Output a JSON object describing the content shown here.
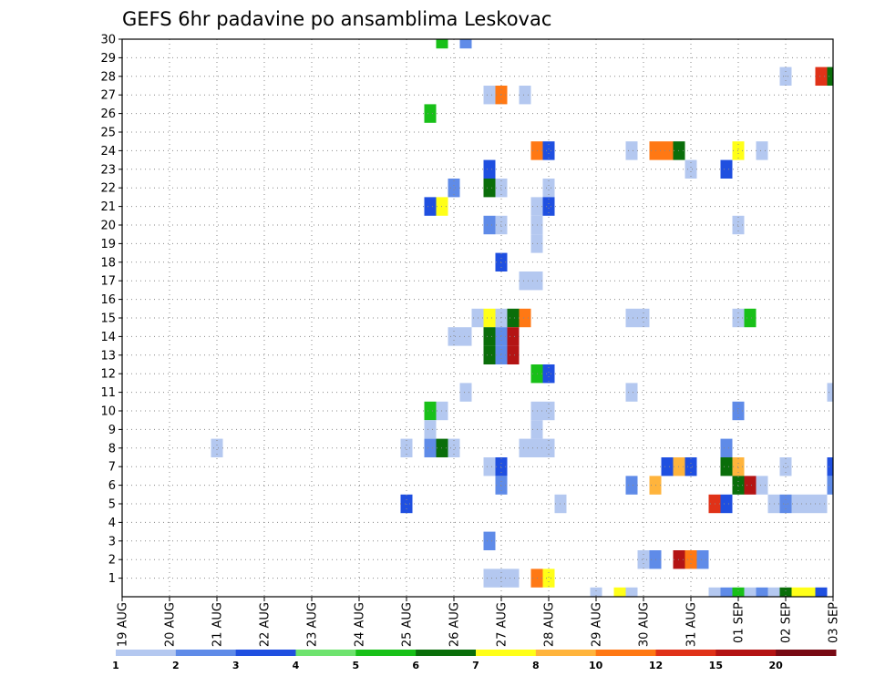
{
  "chart_data": {
    "type": "heatmap",
    "title": "GEFS 6hr padavine po ansamblima Leskovac",
    "xlabel": "",
    "ylabel": "",
    "x_start": "2019-08-19T00",
    "x_end": "2019-09-03T00",
    "x_step_hours": 6,
    "x_tick_labels": [
      "19 AUG",
      "20 AUG",
      "21 AUG",
      "22 AUG",
      "23 AUG",
      "24 AUG",
      "25 AUG",
      "26 AUG",
      "27 AUG",
      "28 AUG",
      "29 AUG",
      "30 AUG",
      "31 AUG",
      "01 SEP",
      "02 SEP",
      "03 SEP"
    ],
    "y_tick_labels": [
      "1",
      "2",
      "3",
      "4",
      "5",
      "6",
      "7",
      "8",
      "9",
      "10",
      "11",
      "12",
      "13",
      "14",
      "15",
      "16",
      "17",
      "18",
      "19",
      "20",
      "21",
      "22",
      "23",
      "24",
      "25",
      "26",
      "27",
      "28",
      "29",
      "30"
    ],
    "grid": true,
    "legend": {
      "placement": "bottom",
      "thresholds": [
        "1",
        "2",
        "3",
        "4",
        "5",
        "6",
        "7",
        "8",
        "10",
        "12",
        "15",
        "20"
      ],
      "colors": [
        "#b4c8f0",
        "#5f8be8",
        "#1f4fe0",
        "#6ee36e",
        "#18c018",
        "#0a6e0a",
        "#ffff18",
        "#ffb43c",
        "#ff7814",
        "#e03218",
        "#b41414",
        "#780a14"
      ]
    },
    "cells": [
      {
        "member": 30,
        "t": "2019-08-25T18",
        "v": 5
      },
      {
        "member": 30,
        "t": "2019-08-26T06",
        "v": 2
      },
      {
        "member": 28,
        "t": "2019-09-02T00",
        "v": 1
      },
      {
        "member": 28,
        "t": "2019-09-02T18",
        "v": 12
      },
      {
        "member": 28,
        "t": "2019-09-03T00",
        "v": 6
      },
      {
        "member": 27,
        "t": "2019-08-26T18",
        "v": 1
      },
      {
        "member": 27,
        "t": "2019-08-27T00",
        "v": 10
      },
      {
        "member": 27,
        "t": "2019-08-27T12",
        "v": 1
      },
      {
        "member": 26,
        "t": "2019-08-25T12",
        "v": 5
      },
      {
        "member": 24,
        "t": "2019-08-27T18",
        "v": 10
      },
      {
        "member": 24,
        "t": "2019-08-28T00",
        "v": 3
      },
      {
        "member": 24,
        "t": "2019-08-29T18",
        "v": 1
      },
      {
        "member": 24,
        "t": "2019-08-30T06",
        "v": 10
      },
      {
        "member": 24,
        "t": "2019-08-30T12",
        "v": 10
      },
      {
        "member": 24,
        "t": "2019-08-30T18",
        "v": 6
      },
      {
        "member": 24,
        "t": "2019-09-01T00",
        "v": 7
      },
      {
        "member": 24,
        "t": "2019-09-01T12",
        "v": 1
      },
      {
        "member": 23,
        "t": "2019-08-26T18",
        "v": 3
      },
      {
        "member": 23,
        "t": "2019-08-31T00",
        "v": 1
      },
      {
        "member": 23,
        "t": "2019-08-31T18",
        "v": 3
      },
      {
        "member": 22,
        "t": "2019-08-26T00",
        "v": 2
      },
      {
        "member": 22,
        "t": "2019-08-26T18",
        "v": 6
      },
      {
        "member": 22,
        "t": "2019-08-27T00",
        "v": 1
      },
      {
        "member": 22,
        "t": "2019-08-28T00",
        "v": 1
      },
      {
        "member": 21,
        "t": "2019-08-25T12",
        "v": 3
      },
      {
        "member": 21,
        "t": "2019-08-25T18",
        "v": 7
      },
      {
        "member": 21,
        "t": "2019-08-27T18",
        "v": 1
      },
      {
        "member": 21,
        "t": "2019-08-28T00",
        "v": 3
      },
      {
        "member": 20,
        "t": "2019-08-26T18",
        "v": 2
      },
      {
        "member": 20,
        "t": "2019-08-27T00",
        "v": 1
      },
      {
        "member": 20,
        "t": "2019-08-27T18",
        "v": 1
      },
      {
        "member": 20,
        "t": "2019-09-01T00",
        "v": 1
      },
      {
        "member": 19,
        "t": "2019-08-27T18",
        "v": 1
      },
      {
        "member": 18,
        "t": "2019-08-27T00",
        "v": 3
      },
      {
        "member": 17,
        "t": "2019-08-27T12",
        "v": 1
      },
      {
        "member": 17,
        "t": "2019-08-27T18",
        "v": 1
      },
      {
        "member": 15,
        "t": "2019-08-26T12",
        "v": 1
      },
      {
        "member": 15,
        "t": "2019-08-26T18",
        "v": 7
      },
      {
        "member": 15,
        "t": "2019-08-27T00",
        "v": 1
      },
      {
        "member": 15,
        "t": "2019-08-27T06",
        "v": 6
      },
      {
        "member": 15,
        "t": "2019-08-27T12",
        "v": 10
      },
      {
        "member": 15,
        "t": "2019-08-29T18",
        "v": 1
      },
      {
        "member": 15,
        "t": "2019-08-30T00",
        "v": 1
      },
      {
        "member": 15,
        "t": "2019-09-01T00",
        "v": 1
      },
      {
        "member": 15,
        "t": "2019-09-01T06",
        "v": 5
      },
      {
        "member": 14,
        "t": "2019-08-26T00",
        "v": 1
      },
      {
        "member": 14,
        "t": "2019-08-26T06",
        "v": 1
      },
      {
        "member": 14,
        "t": "2019-08-26T18",
        "v": 6
      },
      {
        "member": 14,
        "t": "2019-08-27T00",
        "v": 2
      },
      {
        "member": 14,
        "t": "2019-08-27T06",
        "v": 15
      },
      {
        "member": 13,
        "t": "2019-08-26T18",
        "v": 6
      },
      {
        "member": 13,
        "t": "2019-08-27T00",
        "v": 2
      },
      {
        "member": 13,
        "t": "2019-08-27T06",
        "v": 15
      },
      {
        "member": 12,
        "t": "2019-08-27T18",
        "v": 5
      },
      {
        "member": 12,
        "t": "2019-08-28T00",
        "v": 3
      },
      {
        "member": 11,
        "t": "2019-08-26T06",
        "v": 1
      },
      {
        "member": 11,
        "t": "2019-08-29T18",
        "v": 1
      },
      {
        "member": 11,
        "t": "2019-09-03T00",
        "v": 1
      },
      {
        "member": 10,
        "t": "2019-08-25T12",
        "v": 5
      },
      {
        "member": 10,
        "t": "2019-08-25T18",
        "v": 1
      },
      {
        "member": 10,
        "t": "2019-08-27T18",
        "v": 1
      },
      {
        "member": 10,
        "t": "2019-08-28T00",
        "v": 1
      },
      {
        "member": 10,
        "t": "2019-09-01T00",
        "v": 2
      },
      {
        "member": 9,
        "t": "2019-08-25T12",
        "v": 1
      },
      {
        "member": 9,
        "t": "2019-08-27T18",
        "v": 1
      },
      {
        "member": 8,
        "t": "2019-08-21T00",
        "v": 1
      },
      {
        "member": 8,
        "t": "2019-08-25T00",
        "v": 1
      },
      {
        "member": 8,
        "t": "2019-08-25T12",
        "v": 2
      },
      {
        "member": 8,
        "t": "2019-08-25T18",
        "v": 6
      },
      {
        "member": 8,
        "t": "2019-08-26T00",
        "v": 1
      },
      {
        "member": 8,
        "t": "2019-08-27T12",
        "v": 1
      },
      {
        "member": 8,
        "t": "2019-08-27T18",
        "v": 1
      },
      {
        "member": 8,
        "t": "2019-08-28T00",
        "v": 1
      },
      {
        "member": 8,
        "t": "2019-08-31T18",
        "v": 2
      },
      {
        "member": 7,
        "t": "2019-08-26T18",
        "v": 1
      },
      {
        "member": 7,
        "t": "2019-08-27T00",
        "v": 3
      },
      {
        "member": 7,
        "t": "2019-08-30T12",
        "v": 3
      },
      {
        "member": 7,
        "t": "2019-08-30T18",
        "v": 8
      },
      {
        "member": 7,
        "t": "2019-08-31T00",
        "v": 3
      },
      {
        "member": 7,
        "t": "2019-08-31T18",
        "v": 6
      },
      {
        "member": 7,
        "t": "2019-09-01T00",
        "v": 8
      },
      {
        "member": 7,
        "t": "2019-09-02T00",
        "v": 1
      },
      {
        "member": 7,
        "t": "2019-09-03T00",
        "v": 3
      },
      {
        "member": 6,
        "t": "2019-08-27T00",
        "v": 2
      },
      {
        "member": 6,
        "t": "2019-08-29T18",
        "v": 2
      },
      {
        "member": 6,
        "t": "2019-08-30T06",
        "v": 8
      },
      {
        "member": 6,
        "t": "2019-09-01T00",
        "v": 6
      },
      {
        "member": 6,
        "t": "2019-09-01T06",
        "v": 15
      },
      {
        "member": 6,
        "t": "2019-09-01T12",
        "v": 1
      },
      {
        "member": 6,
        "t": "2019-09-03T00",
        "v": 2
      },
      {
        "member": 5,
        "t": "2019-08-25T00",
        "v": 3
      },
      {
        "member": 5,
        "t": "2019-08-28T06",
        "v": 1
      },
      {
        "member": 5,
        "t": "2019-08-31T12",
        "v": 12
      },
      {
        "member": 5,
        "t": "2019-08-31T18",
        "v": 3
      },
      {
        "member": 5,
        "t": "2019-09-01T18",
        "v": 1
      },
      {
        "member": 5,
        "t": "2019-09-02T00",
        "v": 2
      },
      {
        "member": 5,
        "t": "2019-09-02T06",
        "v": 1
      },
      {
        "member": 5,
        "t": "2019-09-02T12",
        "v": 1
      },
      {
        "member": 5,
        "t": "2019-09-02T18",
        "v": 1
      },
      {
        "member": 3,
        "t": "2019-08-26T18",
        "v": 2
      },
      {
        "member": 2,
        "t": "2019-08-30T00",
        "v": 1
      },
      {
        "member": 2,
        "t": "2019-08-30T06",
        "v": 2
      },
      {
        "member": 2,
        "t": "2019-08-30T18",
        "v": 15
      },
      {
        "member": 2,
        "t": "2019-08-31T00",
        "v": 10
      },
      {
        "member": 2,
        "t": "2019-08-31T06",
        "v": 2
      },
      {
        "member": 1,
        "t": "2019-08-26T18",
        "v": 1
      },
      {
        "member": 1,
        "t": "2019-08-27T00",
        "v": 1
      },
      {
        "member": 1,
        "t": "2019-08-27T06",
        "v": 1
      },
      {
        "member": 1,
        "t": "2019-08-27T18",
        "v": 10
      },
      {
        "member": 1,
        "t": "2019-08-28T00",
        "v": 7
      },
      {
        "member": 0,
        "t": "2019-08-29T00",
        "v": 1
      },
      {
        "member": 0,
        "t": "2019-08-29T12",
        "v": 7
      },
      {
        "member": 0,
        "t": "2019-08-29T18",
        "v": 1
      },
      {
        "member": 0,
        "t": "2019-08-31T12",
        "v": 1
      },
      {
        "member": 0,
        "t": "2019-08-31T18",
        "v": 2
      },
      {
        "member": 0,
        "t": "2019-09-01T00",
        "v": 5
      },
      {
        "member": 0,
        "t": "2019-09-01T06",
        "v": 1
      },
      {
        "member": 0,
        "t": "2019-09-01T12",
        "v": 2
      },
      {
        "member": 0,
        "t": "2019-09-01T18",
        "v": 1
      },
      {
        "member": 0,
        "t": "2019-09-02T00",
        "v": 6
      },
      {
        "member": 0,
        "t": "2019-09-02T06",
        "v": 7
      },
      {
        "member": 0,
        "t": "2019-09-02T12",
        "v": 7
      },
      {
        "member": 0,
        "t": "2019-09-02T18",
        "v": 3
      }
    ]
  }
}
